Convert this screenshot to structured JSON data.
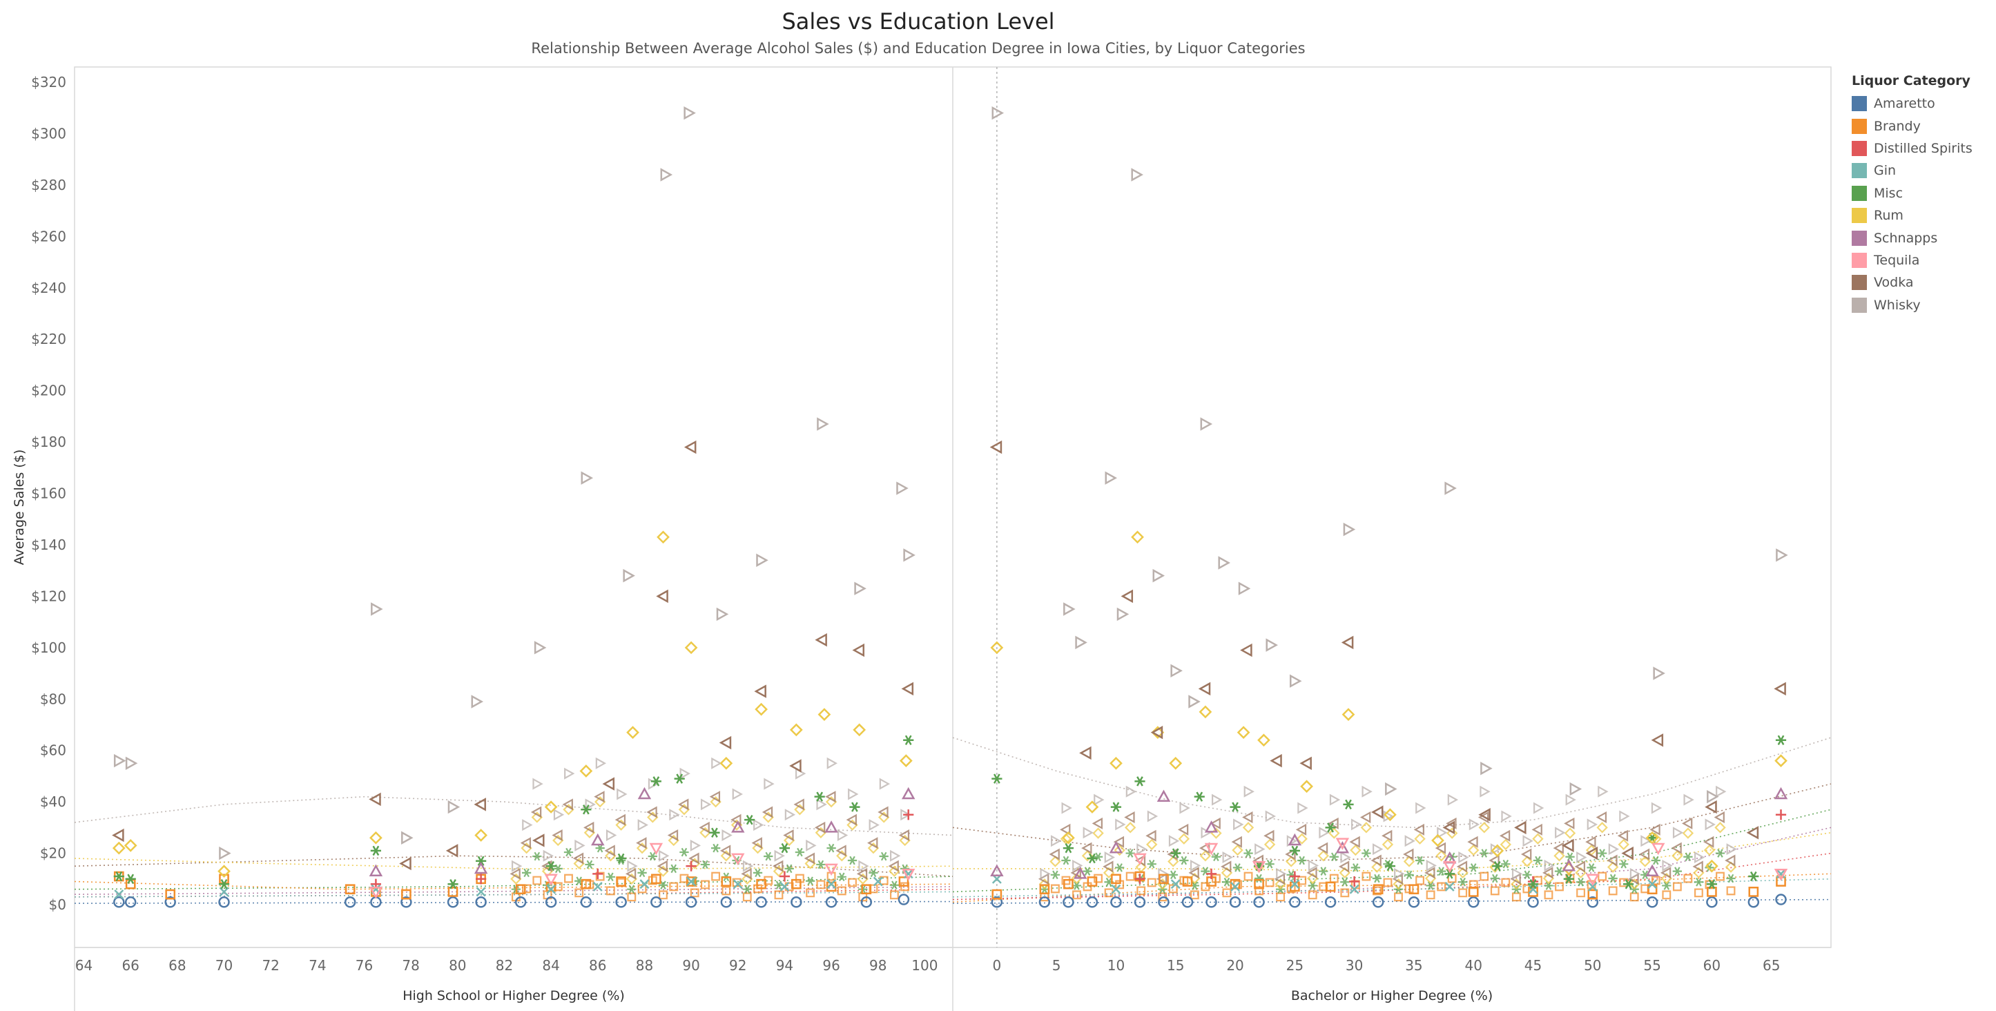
{
  "title": "Sales vs Education Level",
  "subtitle": "Relationship Between Average Alcohol Sales ($) and Education Degree in Iowa Cities, by Liquor Categories",
  "legend": {
    "title": "Liquor Category",
    "items": [
      {
        "label": "Amaretto",
        "color": "#4e79a7"
      },
      {
        "label": "Brandy",
        "color": "#f28e2b"
      },
      {
        "label": "Distilled Spirits",
        "color": "#e15759"
      },
      {
        "label": "Gin",
        "color": "#76b7b2"
      },
      {
        "label": "Misc",
        "color": "#59a14f"
      },
      {
        "label": "Rum",
        "color": "#edc948"
      },
      {
        "label": "Schnapps",
        "color": "#b07aa1"
      },
      {
        "label": "Tequila",
        "color": "#ff9da7"
      },
      {
        "label": "Vodka",
        "color": "#9c755f"
      },
      {
        "label": "Whisky",
        "color": "#bab0ac"
      }
    ]
  },
  "chart_data": [
    {
      "type": "scatter",
      "xlabel": "High School or Higher Degree (%)",
      "ylabel": "Average Sales ($)",
      "xlim": [
        63.6,
        101.2
      ],
      "ylim": [
        -17,
        322
      ],
      "xticks": [
        "64",
        "66",
        "68",
        "70",
        "72",
        "74",
        "76",
        "78",
        "80",
        "82",
        "84",
        "86",
        "88",
        "90",
        "92",
        "94",
        "96",
        "98",
        "100"
      ],
      "yticks": [
        "$0",
        "$20",
        "$40",
        "$60",
        "$80",
        "$100",
        "$120",
        "$140",
        "$160",
        "$180",
        "$200",
        "$220",
        "$240",
        "$260",
        "$280",
        "$300",
        "$320"
      ],
      "grid": false,
      "trend_lines": "polynomial, dotted, one per category",
      "series": [
        {
          "name": "Amaretto",
          "marker": "circle",
          "color": "#4e79a7",
          "x": [
            65.5,
            66,
            67.7,
            70,
            75.4,
            76.5,
            77.8,
            79.8,
            81,
            82.7,
            84,
            85.5,
            87,
            88.5,
            90,
            91.5,
            93,
            94.5,
            96,
            97.5,
            99.1
          ],
          "y": [
            1,
            1,
            1,
            1,
            1,
            1,
            1,
            1,
            1,
            1,
            1,
            1,
            1,
            1,
            1,
            1,
            1,
            1,
            1,
            1,
            2
          ]
        },
        {
          "name": "Brandy",
          "marker": "square",
          "color": "#f28e2b",
          "x": [
            65.5,
            66,
            67.7,
            70,
            75.4,
            76.5,
            77.8,
            79.8,
            81,
            82.7,
            84,
            85.5,
            87,
            88.5,
            90,
            91.5,
            93,
            94.5,
            96,
            97.5,
            99.1
          ],
          "y": [
            11,
            8,
            4,
            10,
            6,
            5,
            4,
            5,
            10,
            6,
            7,
            8,
            9,
            10,
            9,
            9,
            8,
            8,
            7,
            6,
            9
          ]
        },
        {
          "name": "Distilled Spirits",
          "marker": "plus",
          "color": "#e15759",
          "x": [
            76.5,
            81,
            86,
            90,
            94,
            99.3
          ],
          "y": [
            8,
            10,
            12,
            15,
            11,
            35
          ]
        },
        {
          "name": "Gin",
          "marker": "x",
          "color": "#76b7b2",
          "x": [
            65.5,
            70,
            76.5,
            81,
            84,
            86,
            88,
            90,
            92,
            94,
            96,
            98,
            99.3
          ],
          "y": [
            4,
            5,
            6,
            5,
            6,
            7,
            8,
            9,
            8,
            7,
            8,
            9,
            12
          ]
        },
        {
          "name": "Misc",
          "marker": "asterisk",
          "color": "#59a14f",
          "x": [
            65.5,
            66,
            70,
            76.5,
            79.8,
            81,
            84,
            85.5,
            87,
            88.5,
            89.5,
            91,
            92.5,
            94,
            95.5,
            97,
            99.3
          ],
          "y": [
            11,
            10,
            8,
            21,
            8,
            17,
            15,
            37,
            18,
            48,
            49,
            28,
            33,
            22,
            42,
            38,
            64
          ]
        },
        {
          "name": "Rum",
          "marker": "diamond",
          "color": "#edc948",
          "x": [
            65.5,
            66,
            70,
            76.5,
            81,
            84,
            85.5,
            87.5,
            88.8,
            90,
            91.5,
            93,
            94.5,
            95.7,
            97.2,
            99.2
          ],
          "y": [
            22,
            23,
            13,
            26,
            27,
            38,
            52,
            67,
            143,
            100,
            55,
            76,
            68,
            74,
            68,
            56
          ]
        },
        {
          "name": "Schnapps",
          "marker": "triangle-up",
          "color": "#b07aa1",
          "x": [
            76.5,
            81,
            86,
            88,
            92,
            96,
            99.3
          ],
          "y": [
            13,
            14,
            25,
            43,
            30,
            30,
            43
          ]
        },
        {
          "name": "Tequila",
          "marker": "triangle-down",
          "color": "#ff9da7",
          "x": [
            76.5,
            84,
            88.5,
            92,
            96,
            99.3
          ],
          "y": [
            5,
            10,
            22,
            18,
            14,
            12
          ]
        },
        {
          "name": "Vodka",
          "marker": "triangle-left",
          "color": "#9c755f",
          "x": [
            65.5,
            76.5,
            77.8,
            79.8,
            81,
            83.5,
            86.5,
            88.8,
            90,
            91.5,
            93,
            94.5,
            95.6,
            97.2,
            99.3
          ],
          "y": [
            27,
            41,
            16,
            21,
            39,
            25,
            47,
            120,
            178,
            63,
            83,
            54,
            103,
            99,
            84
          ]
        },
        {
          "name": "Whisky",
          "marker": "triangle-right",
          "color": "#bab0ac",
          "x": [
            65.5,
            66,
            70,
            76.5,
            77.8,
            79.8,
            80.8,
            83.5,
            85.5,
            87.3,
            88.9,
            89.9,
            91.3,
            93,
            95.6,
            97.2,
            99,
            99.3
          ],
          "y": [
            56,
            55,
            20,
            115,
            26,
            38,
            79,
            100,
            166,
            128,
            284,
            308,
            113,
            134,
            187,
            123,
            162,
            136
          ]
        }
      ]
    },
    {
      "type": "scatter",
      "xlabel": "Bachelor or Higher Degree (%)",
      "ylabel": "Average Sales ($)",
      "xlim": [
        -3.7,
        70
      ],
      "ylim": [
        -17,
        322
      ],
      "xticks": [
        "0",
        "5",
        "10",
        "15",
        "20",
        "25",
        "30",
        "35",
        "40",
        "45",
        "50",
        "55",
        "60",
        "65"
      ],
      "yticks": [
        "$0",
        "$20",
        "$40",
        "$60",
        "$80",
        "$100",
        "$120",
        "$140",
        "$160",
        "$180",
        "$200",
        "$220",
        "$240",
        "$260",
        "$280",
        "$300",
        "$320"
      ],
      "grid": false,
      "trend_lines": "polynomial, dotted, one per category",
      "series": [
        {
          "name": "Amaretto",
          "marker": "circle",
          "color": "#4e79a7",
          "x": [
            0,
            4,
            6,
            8,
            10,
            12,
            14,
            16,
            18,
            20,
            22,
            25,
            28,
            32,
            35,
            40,
            45,
            50,
            55,
            60,
            63.5,
            65.8
          ],
          "y": [
            1,
            1,
            1,
            1,
            1,
            1,
            1,
            1,
            1,
            1,
            1,
            1,
            1,
            1,
            1,
            1,
            1,
            1,
            1,
            1,
            1,
            2
          ]
        },
        {
          "name": "Brandy",
          "marker": "square",
          "color": "#f28e2b",
          "x": [
            0,
            4,
            6,
            8,
            10,
            12,
            14,
            16,
            18,
            20,
            22,
            25,
            28,
            32,
            35,
            40,
            45,
            50,
            55,
            60,
            63.5,
            65.8
          ],
          "y": [
            4,
            6,
            8,
            9,
            10,
            11,
            10,
            9,
            9,
            8,
            8,
            7,
            7,
            6,
            6,
            5,
            5,
            4,
            6,
            5,
            5,
            9
          ]
        },
        {
          "name": "Distilled Spirits",
          "marker": "plus",
          "color": "#e15759",
          "x": [
            12,
            18,
            25,
            30,
            45,
            65.8
          ],
          "y": [
            10,
            12,
            11,
            9,
            9,
            35
          ]
        },
        {
          "name": "Gin",
          "marker": "x",
          "color": "#76b7b2",
          "x": [
            0,
            10,
            15,
            20,
            25,
            30,
            38,
            45,
            50,
            55,
            65.8
          ],
          "y": [
            10,
            6,
            8,
            7,
            8,
            6,
            7,
            6,
            7,
            8,
            12
          ]
        },
        {
          "name": "Misc",
          "marker": "asterisk",
          "color": "#59a14f",
          "x": [
            0,
            6,
            8,
            10,
            12,
            15,
            17,
            20,
            22,
            25,
            28,
            29.5,
            33,
            38,
            42,
            45,
            48,
            53,
            55,
            60,
            63.5,
            65.8
          ],
          "y": [
            49,
            22,
            18,
            38,
            48,
            20,
            42,
            38,
            15,
            21,
            30,
            39,
            15,
            12,
            15,
            8,
            10,
            8,
            26,
            8,
            11,
            64
          ]
        },
        {
          "name": "Rum",
          "marker": "diamond",
          "color": "#edc948",
          "x": [
            0,
            6,
            8,
            10,
            11.8,
            13.5,
            15,
            17.5,
            20.7,
            22.4,
            26,
            29.5,
            33,
            37,
            42,
            48,
            55,
            60,
            65.8
          ],
          "y": [
            100,
            26,
            38,
            55,
            143,
            67,
            55,
            75,
            67,
            64,
            46,
            74,
            35,
            25,
            21,
            14,
            26,
            15,
            56
          ]
        },
        {
          "name": "Schnapps",
          "marker": "triangle-up",
          "color": "#b07aa1",
          "x": [
            0,
            7,
            10,
            14,
            18,
            25,
            29,
            38,
            48,
            55,
            65.8
          ],
          "y": [
            13,
            12,
            22,
            42,
            30,
            25,
            22,
            18,
            15,
            13,
            43
          ]
        },
        {
          "name": "Tequila",
          "marker": "triangle-down",
          "color": "#ff9da7",
          "x": [
            12,
            18,
            22,
            29,
            38,
            50,
            55.5,
            65.8
          ],
          "y": [
            18,
            22,
            15,
            24,
            15,
            10,
            22,
            12
          ]
        },
        {
          "name": "Vodka",
          "marker": "triangle-left",
          "color": "#9c755f",
          "x": [
            0,
            7.5,
            11,
            13.5,
            17.5,
            21,
            23.5,
            26,
            29.5,
            32,
            38,
            41,
            44,
            48,
            50,
            53,
            55.5,
            60,
            63.5,
            65.8
          ],
          "y": [
            178,
            59,
            120,
            67,
            84,
            99,
            56,
            55,
            102,
            36,
            30,
            35,
            30,
            23,
            20,
            20,
            64,
            38,
            28,
            84
          ]
        },
        {
          "name": "Whisky",
          "marker": "triangle-right",
          "color": "#bab0ac",
          "x": [
            0,
            6,
            7,
            9.5,
            10.5,
            11.7,
            13.5,
            15,
            16.5,
            17.5,
            19,
            20.7,
            23,
            25,
            29.5,
            33,
            38,
            41,
            48.5,
            55.5,
            60,
            65.8
          ],
          "y": [
            308,
            115,
            102,
            166,
            113,
            284,
            128,
            91,
            79,
            187,
            133,
            123,
            101,
            87,
            146,
            45,
            162,
            53,
            45,
            90,
            42,
            136
          ]
        }
      ]
    }
  ]
}
